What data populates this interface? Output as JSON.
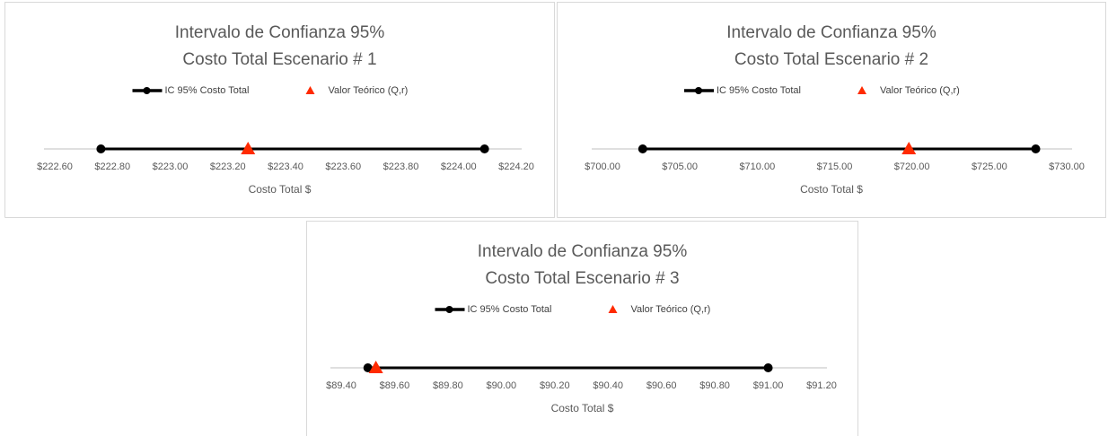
{
  "chart_data": [
    {
      "type": "interval",
      "title": "Intervalo de Confianza 95%",
      "subtitle": "Costo Total  Escenario # 1",
      "xlabel": "Costo  Total $",
      "series": [
        {
          "name": "IC 95% Costo Total",
          "color": "#000000",
          "values": [
            222.76,
            224.09
          ]
        },
        {
          "name": "Valor Teórico (Q,r)",
          "color": "#ff2a00",
          "values": [
            223.27
          ]
        }
      ],
      "xlim": [
        222.6,
        224.2
      ],
      "xticks": [
        {
          "value": 222.6,
          "label": "$222.60"
        },
        {
          "value": 222.8,
          "label": "$222.80"
        },
        {
          "value": 223.0,
          "label": "$223.00"
        },
        {
          "value": 223.2,
          "label": "$223.20"
        },
        {
          "value": 223.4,
          "label": "$223.40"
        },
        {
          "value": 223.6,
          "label": "$223.60"
        },
        {
          "value": 223.8,
          "label": "$223.80"
        },
        {
          "value": 224.0,
          "label": "$224.00"
        },
        {
          "value": 224.2,
          "label": "$224.20"
        }
      ]
    },
    {
      "type": "interval",
      "title": "Intervalo de Confianza 95%",
      "subtitle": "Costo Total  Escenario # 2",
      "xlabel": "Costo  Total $",
      "series": [
        {
          "name": "IC 95% Costo Total",
          "color": "#000000",
          "values": [
            702.6,
            728.0
          ]
        },
        {
          "name": "Valor Teórico (Q,r)",
          "color": "#ff2a00",
          "values": [
            719.8
          ]
        }
      ],
      "xlim": [
        700,
        730
      ],
      "xticks": [
        {
          "value": 700,
          "label": "$700.00"
        },
        {
          "value": 705,
          "label": "$705.00"
        },
        {
          "value": 710,
          "label": "$710.00"
        },
        {
          "value": 715,
          "label": "$715.00"
        },
        {
          "value": 720,
          "label": "$720.00"
        },
        {
          "value": 725,
          "label": "$725.00"
        },
        {
          "value": 730,
          "label": "$730.00"
        }
      ]
    },
    {
      "type": "interval",
      "title": "Intervalo de Confianza 95%",
      "subtitle": "Costo Total  Escenario # 3",
      "xlabel": "Costo  Total $",
      "series": [
        {
          "name": "IC 95% Costo Total",
          "color": "#000000",
          "values": [
            89.5,
            91.0
          ]
        },
        {
          "name": "Valor Teórico (Q,r)",
          "color": "#ff2a00",
          "values": [
            89.53
          ]
        }
      ],
      "xlim": [
        89.4,
        91.2
      ],
      "xticks": [
        {
          "value": 89.4,
          "label": "$89.40"
        },
        {
          "value": 89.6,
          "label": "$89.60"
        },
        {
          "value": 89.8,
          "label": "$89.80"
        },
        {
          "value": 90.0,
          "label": "$90.00"
        },
        {
          "value": 90.2,
          "label": "$90.20"
        },
        {
          "value": 90.4,
          "label": "$90.40"
        },
        {
          "value": 90.6,
          "label": "$90.60"
        },
        {
          "value": 90.8,
          "label": "$90.80"
        },
        {
          "value": 91.0,
          "label": "$91.00"
        },
        {
          "value": 91.2,
          "label": "$91.20"
        }
      ]
    }
  ]
}
